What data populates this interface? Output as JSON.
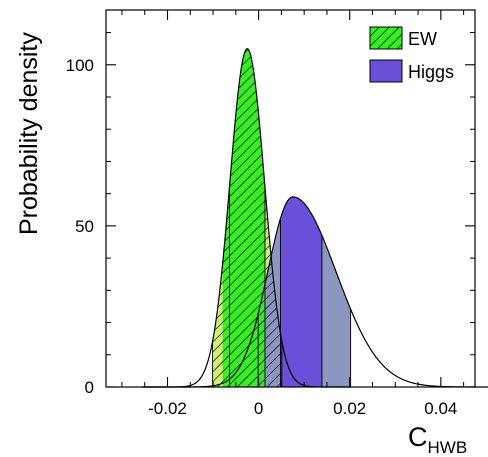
{
  "chart_data": {
    "type": "area",
    "xlabel": {
      "main": "C",
      "sub": "HWB"
    },
    "ylabel": "Probability density",
    "xlim": [
      -0.0335,
      0.0475
    ],
    "ylim": [
      0,
      117
    ],
    "x_ticks": [
      -0.02,
      0,
      0.02,
      0.04
    ],
    "x_tick_labels": [
      "-0.02",
      "0",
      "0.02",
      "0.04"
    ],
    "y_ticks": [
      0,
      50,
      100
    ],
    "y_tick_labels": [
      "0",
      "50",
      "100"
    ],
    "legend_position": "top-right",
    "grid": false,
    "series": [
      {
        "name": "EW",
        "distribution": "gaussian",
        "peak_x": -0.0025,
        "peak_density": 105,
        "sigma": 0.0038,
        "color": "#33ee22",
        "band_light": "#ccf078",
        "band_dark": "#9ed878",
        "pattern": "hatched",
        "intervals": {
          "inner": [
            -0.0064,
            0.0014
          ],
          "outer": [
            -0.0101,
            0.0051
          ]
        }
      },
      {
        "name": "Higgs",
        "distribution": "skewed",
        "peak_x": 0.0075,
        "peak_density": 59,
        "sigma_left": 0.0055,
        "sigma_right": 0.0095,
        "color": "#6a50d8",
        "band_light": "#8c96c0",
        "band_dark": "#6a50d8",
        "pattern": "solid",
        "intervals": {
          "inner": [
            0.0048,
            0.0139
          ],
          "outer": [
            -0.0001,
            0.0202
          ]
        }
      }
    ]
  }
}
